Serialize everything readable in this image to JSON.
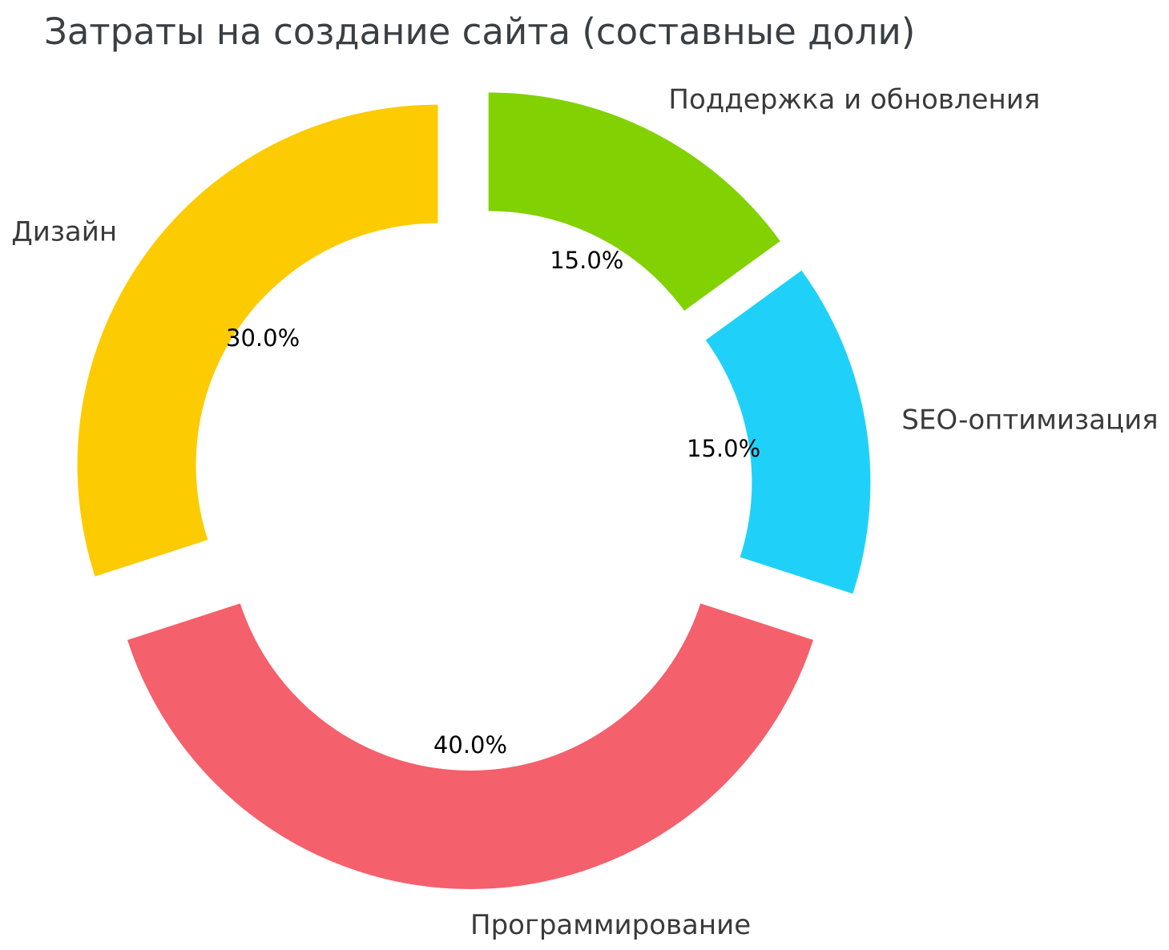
{
  "title": "Затраты на создание сайта (составные доли)",
  "chart_data": {
    "type": "pie",
    "subtype": "donut-exploded",
    "title": "Затраты на создание сайта (составные доли)",
    "labels": [
      "Поддержка и обновления",
      "SEO-оптимизация",
      "Программирование",
      "Дизайн"
    ],
    "values": [
      15,
      15,
      40,
      30
    ],
    "pct_labels": [
      "15.0%",
      "15.0%",
      "40.0%",
      "30.0%"
    ],
    "colors": [
      "#82d103",
      "#1fd1f9",
      "#f4606b",
      "#fdcb02"
    ],
    "start_angle": 90,
    "direction": "clockwise",
    "donut_hole_ratio": 0.67,
    "explode": 0.11,
    "legend": "none",
    "grid": "off",
    "background": "#ffffff",
    "title_color": "#3a3f44",
    "label_color": "#3a3a3a",
    "pct_color": "#000000"
  }
}
